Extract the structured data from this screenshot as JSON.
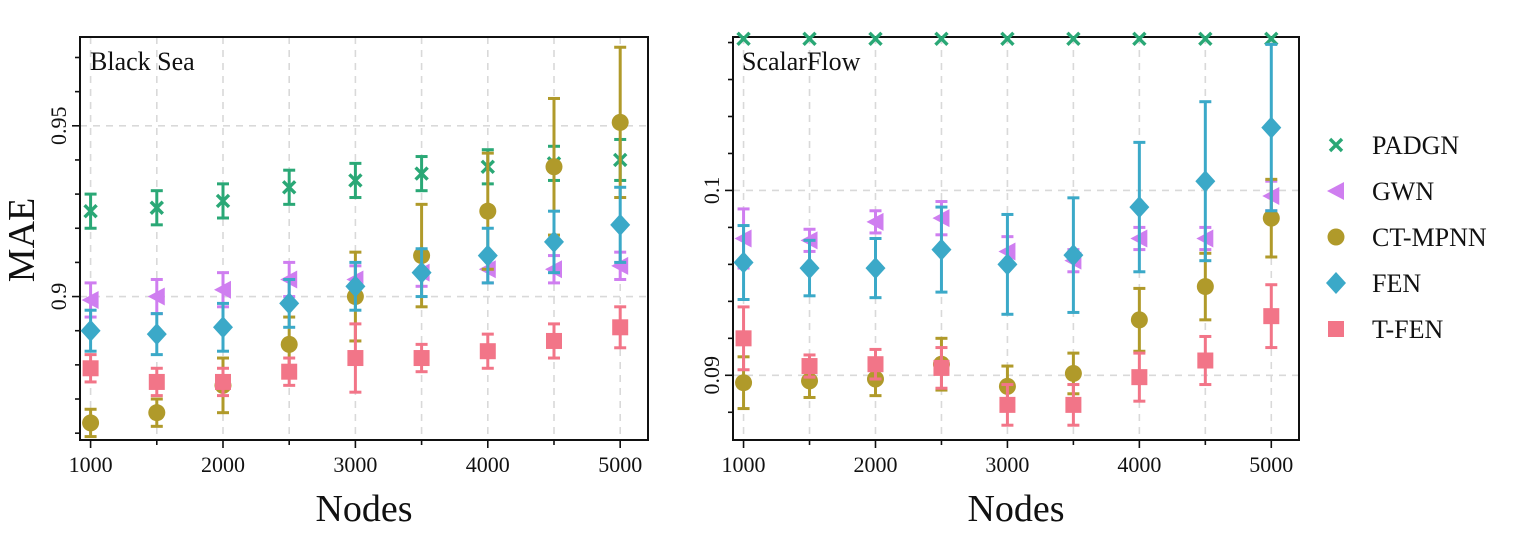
{
  "figure": {
    "y_label": "MAE",
    "legend": [
      {
        "label": "PADGN",
        "marker": "x",
        "color": "#2aa876"
      },
      {
        "label": "GWN",
        "marker": "triangle-left",
        "color": "#cf7ef0"
      },
      {
        "label": "CT-MPNN",
        "marker": "circle",
        "color": "#b09a2a"
      },
      {
        "label": "FEN",
        "marker": "diamond",
        "color": "#3ba9c8"
      },
      {
        "label": "T-FEN",
        "marker": "square",
        "color": "#f27588"
      }
    ]
  },
  "chart_data": [
    {
      "type": "scatter",
      "title": "Black Sea",
      "xlabel": "Nodes",
      "ylabel": "MAE",
      "xlim": [
        920,
        5210
      ],
      "ylim": [
        0.858,
        0.976
      ],
      "x_ticks": [
        1000,
        2000,
        3000,
        4000,
        5000
      ],
      "x_tick_labels": [
        "1000",
        "2000",
        "3000",
        "4000",
        "5000"
      ],
      "y_ticks": [
        0.9,
        0.95
      ],
      "y_tick_labels": [
        "0.9",
        "0.95"
      ],
      "grid": true,
      "x": [
        1000,
        1500,
        2000,
        2500,
        3000,
        3500,
        4000,
        4500,
        5000
      ],
      "series": [
        {
          "name": "PADGN",
          "values": [
            0.925,
            0.926,
            0.928,
            0.932,
            0.934,
            0.936,
            0.938,
            0.939,
            0.94
          ],
          "err": [
            0.005,
            0.005,
            0.005,
            0.005,
            0.005,
            0.005,
            0.005,
            0.005,
            0.006
          ]
        },
        {
          "name": "GWN",
          "values": [
            0.899,
            0.9,
            0.902,
            0.905,
            0.905,
            0.907,
            0.908,
            0.908,
            0.909
          ],
          "err": [
            0.005,
            0.005,
            0.005,
            0.005,
            0.004,
            0.004,
            0.004,
            0.004,
            0.004
          ]
        },
        {
          "name": "CT-MPNN",
          "values": [
            0.863,
            0.866,
            0.874,
            0.886,
            0.9,
            0.912,
            0.925,
            0.938,
            0.951
          ],
          "err": [
            0.004,
            0.004,
            0.008,
            0.008,
            0.013,
            0.015,
            0.017,
            0.02,
            0.022
          ]
        },
        {
          "name": "FEN",
          "values": [
            0.89,
            0.889,
            0.891,
            0.898,
            0.903,
            0.907,
            0.912,
            0.916,
            0.921
          ],
          "err": [
            0.006,
            0.006,
            0.007,
            0.007,
            0.007,
            0.007,
            0.008,
            0.009,
            0.011
          ]
        },
        {
          "name": "T-FEN",
          "values": [
            0.879,
            0.875,
            0.875,
            0.878,
            0.882,
            0.882,
            0.884,
            0.887,
            0.891
          ],
          "err": [
            0.004,
            0.004,
            0.004,
            0.004,
            0.01,
            0.004,
            0.005,
            0.005,
            0.006
          ]
        }
      ]
    },
    {
      "type": "scatter",
      "title": "ScalarFlow",
      "xlabel": "Nodes",
      "ylabel": "",
      "xlim": [
        920,
        5210
      ],
      "ylim": [
        0.0865,
        0.1083
      ],
      "x_ticks": [
        1000,
        2000,
        3000,
        4000,
        5000
      ],
      "x_tick_labels": [
        "1000",
        "2000",
        "3000",
        "4000",
        "5000"
      ],
      "y_ticks": [
        0.09,
        0.1
      ],
      "y_tick_labels": [
        "0.09",
        "0.1"
      ],
      "grid": true,
      "x": [
        1000,
        1500,
        2000,
        2500,
        3000,
        3500,
        4000,
        4500,
        5000
      ],
      "series": [
        {
          "name": "PADGN",
          "values": [
            0.1082,
            0.1082,
            0.1082,
            0.1082,
            0.1082,
            0.1082,
            0.1082,
            0.1082,
            0.1082
          ],
          "err": [
            0,
            0,
            0,
            0,
            0,
            0,
            0,
            0,
            0
          ]
        },
        {
          "name": "GWN",
          "values": [
            0.0974,
            0.0973,
            0.0983,
            0.0985,
            0.0967,
            0.0962,
            0.0974,
            0.0974,
            0.0997
          ],
          "err": [
            0.0016,
            0.0006,
            0.0006,
            0.0009,
            0.0008,
            0.0006,
            0.0006,
            0.0006,
            0.0008
          ]
        },
        {
          "name": "CT-MPNN",
          "values": [
            0.0896,
            0.0897,
            0.0898,
            0.0906,
            0.0894,
            0.0901,
            0.093,
            0.0948,
            0.0985
          ],
          "err": [
            0.0014,
            0.0009,
            0.0009,
            0.0014,
            0.0011,
            0.0011,
            0.0017,
            0.0018,
            0.0021
          ]
        },
        {
          "name": "FEN",
          "values": [
            0.0961,
            0.0958,
            0.0958,
            0.0968,
            0.096,
            0.0965,
            0.0991,
            0.1005,
            0.1034
          ],
          "err": [
            0.002,
            0.0015,
            0.0016,
            0.0023,
            0.0027,
            0.0031,
            0.0035,
            0.0043,
            0.0045
          ]
        },
        {
          "name": "T-FEN",
          "values": [
            0.092,
            0.0905,
            0.0906,
            0.0904,
            0.0884,
            0.0884,
            0.0899,
            0.0908,
            0.0932
          ],
          "err": [
            0.0017,
            0.0006,
            0.0008,
            0.0011,
            0.0011,
            0.0011,
            0.0013,
            0.0013,
            0.0017
          ]
        }
      ]
    }
  ]
}
